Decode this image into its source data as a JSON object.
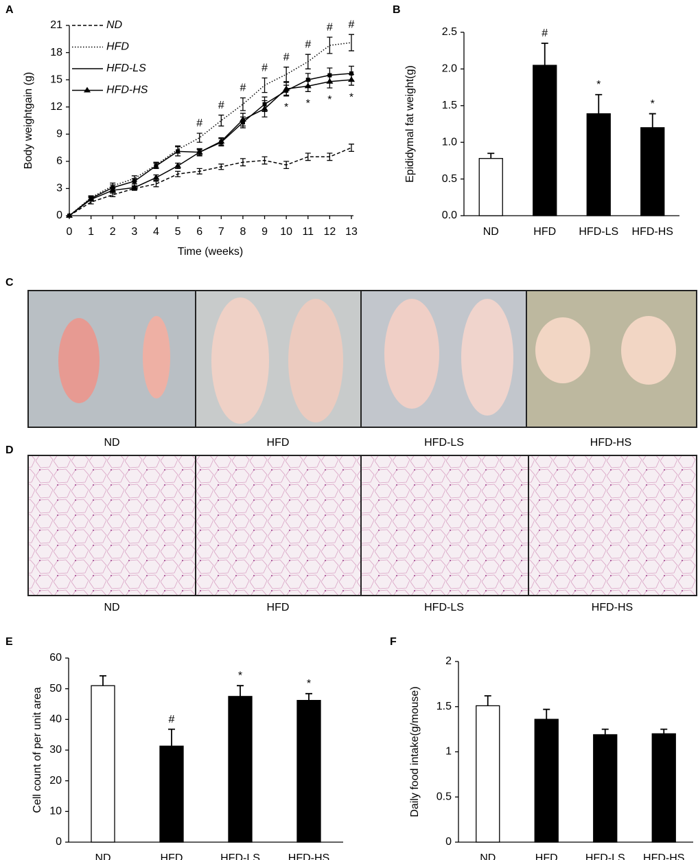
{
  "chart_data": [
    {
      "type": "line",
      "panel": "A",
      "x_label": "Time (weeks)",
      "y_label": "Body weightgain (g)",
      "x": [
        0,
        1,
        2,
        3,
        4,
        5,
        6,
        7,
        8,
        9,
        10,
        11,
        12,
        13
      ],
      "xlim": [
        0,
        13
      ],
      "xticks": [
        0,
        1,
        2,
        3,
        4,
        5,
        6,
        7,
        8,
        9,
        10,
        11,
        12,
        13
      ],
      "ylim": [
        0,
        21
      ],
      "yticks": [
        0,
        3,
        6,
        9,
        12,
        15,
        18,
        21
      ],
      "series": [
        {
          "name": "ND",
          "color": "#000000",
          "style": "dashed",
          "marker": "none",
          "values": [
            0,
            1.5,
            2.3,
            3.0,
            3.5,
            4.6,
            4.9,
            5.4,
            5.9,
            6.1,
            5.6,
            6.5,
            6.5,
            7.5
          ],
          "errors": [
            0,
            0.2,
            0.2,
            0.2,
            0.3,
            0.3,
            0.3,
            0.3,
            0.4,
            0.4,
            0.4,
            0.4,
            0.4,
            0.4
          ]
        },
        {
          "name": "HFD",
          "color": "#000000",
          "style": "dotted",
          "marker": "none",
          "values": [
            0,
            2.0,
            3.3,
            4.1,
            5.6,
            7.3,
            8.6,
            10.5,
            12.3,
            14.4,
            15.6,
            17.0,
            18.8,
            19.1
          ],
          "errors": [
            0,
            0.2,
            0.3,
            0.3,
            0.3,
            0.4,
            0.5,
            0.6,
            0.7,
            0.8,
            0.8,
            0.8,
            0.9,
            0.9
          ],
          "sig_position": "above",
          "sig_labels": [
            null,
            null,
            null,
            null,
            null,
            null,
            "#",
            "#",
            "#",
            "#",
            "#",
            "#",
            "#",
            "#"
          ]
        },
        {
          "name": "HFD-LS",
          "color": "#000000",
          "style": "solid",
          "marker": "square",
          "values": [
            0,
            1.9,
            3.1,
            3.8,
            5.5,
            7.1,
            7.0,
            8.1,
            10.3,
            12.3,
            13.8,
            15.0,
            15.5,
            15.7
          ],
          "errors": [
            0,
            0.2,
            0.3,
            0.3,
            0.3,
            0.5,
            0.4,
            0.4,
            0.6,
            0.8,
            0.6,
            0.7,
            0.8,
            0.8
          ]
        },
        {
          "name": "HFD-HS",
          "color": "#000000",
          "style": "solid",
          "marker": "triangle",
          "values": [
            0,
            1.8,
            2.8,
            3.1,
            4.2,
            5.5,
            7.0,
            8.2,
            10.6,
            11.8,
            14.0,
            14.3,
            14.8,
            15.0
          ],
          "errors": [
            0,
            0.2,
            0.3,
            0.2,
            0.3,
            0.3,
            0.3,
            0.4,
            0.7,
            0.9,
            0.7,
            0.6,
            0.7,
            0.6
          ],
          "sig_position": "below",
          "sig_labels": [
            null,
            null,
            null,
            null,
            null,
            null,
            null,
            null,
            null,
            null,
            "*",
            "*",
            "*",
            "*"
          ]
        }
      ]
    },
    {
      "type": "bar",
      "panel": "B",
      "y_label": "Epididymal fat weight(g)",
      "categories": [
        "ND",
        "HFD",
        "HFD-LS",
        "HFD-HS"
      ],
      "values": [
        0.78,
        2.05,
        1.39,
        1.2
      ],
      "errors": [
        0.07,
        0.3,
        0.26,
        0.19
      ],
      "colors": [
        "#ffffff",
        "#000000",
        "#000000",
        "#000000"
      ],
      "sig_labels": [
        null,
        "#",
        "*",
        "*"
      ],
      "ylim": [
        0,
        2.5
      ],
      "yticks": [
        {
          "value": 0,
          "label": "0.0"
        },
        {
          "value": 0.5,
          "label": "0.5"
        },
        {
          "value": 1,
          "label": "1.0"
        },
        {
          "value": 1.5,
          "label": "1.5"
        },
        {
          "value": 2,
          "label": "2.0"
        },
        {
          "value": 2.5,
          "label": "2.5"
        }
      ]
    },
    {
      "type": "bar",
      "panel": "E",
      "y_label": "Cell count of  per unit area",
      "categories": [
        "ND",
        "HFD",
        "HFD-LS",
        "HFD-HS"
      ],
      "values": [
        51,
        31.3,
        47.5,
        46.2
      ],
      "errors": [
        3.2,
        5.5,
        3.5,
        2.2
      ],
      "colors": [
        "#ffffff",
        "#000000",
        "#000000",
        "#000000"
      ],
      "sig_labels": [
        null,
        "#",
        "*",
        "*"
      ],
      "ylim": [
        0,
        60
      ],
      "yticks": [
        0,
        10,
        20,
        30,
        40,
        50,
        60
      ]
    },
    {
      "type": "bar",
      "panel": "F",
      "y_label": "Daily food intake(g/mouse)",
      "categories": [
        "ND",
        "HFD",
        "HFD-LS",
        "HFD-HS"
      ],
      "values": [
        1.51,
        1.36,
        1.19,
        1.2
      ],
      "errors": [
        0.11,
        0.11,
        0.06,
        0.05
      ],
      "colors": [
        "#ffffff",
        "#000000",
        "#000000",
        "#000000"
      ],
      "ylim": [
        0,
        2
      ],
      "yticks": [
        0,
        0.5,
        1,
        1.5,
        2
      ]
    }
  ],
  "photo_panels": [
    {
      "panel": "C",
      "labels": [
        "ND",
        "HFD",
        "HFD-LS",
        "HFD-HS"
      ]
    },
    {
      "panel": "D",
      "labels": [
        "ND",
        "HFD",
        "HFD-LS",
        "HFD-HS"
      ]
    }
  ]
}
